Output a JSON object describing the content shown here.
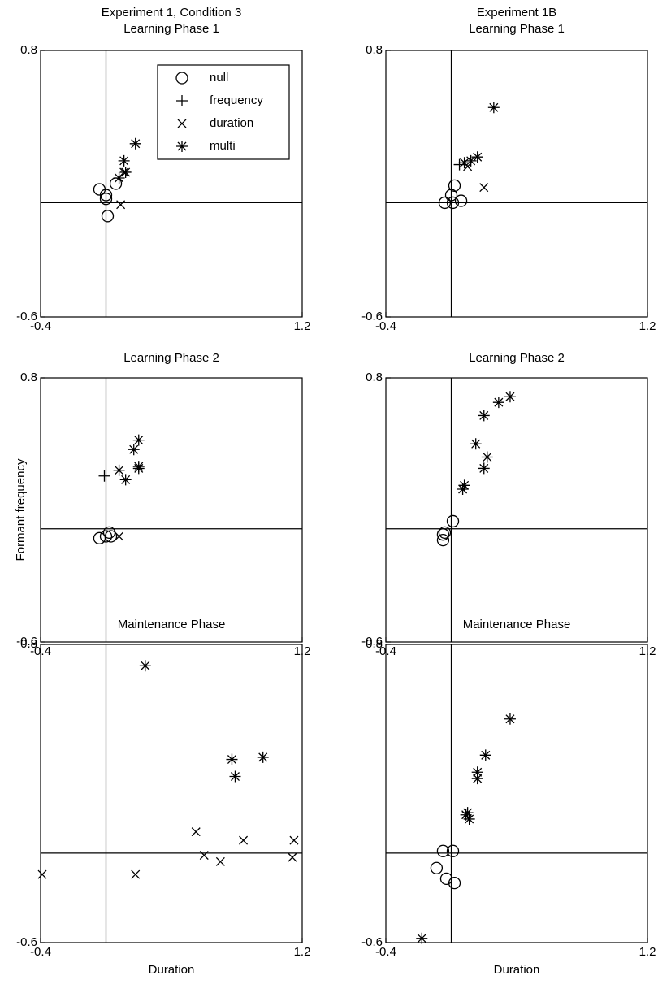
{
  "chart_data": [
    {
      "type": "scatter",
      "title": "Experiment 1, Condition 3",
      "subtitle": "Learning Phase 1",
      "xlim": [
        -0.4,
        1.2
      ],
      "ylim": [
        -0.6,
        0.8
      ],
      "xticks": [
        -0.4,
        1.2
      ],
      "yticks": [
        -0.6,
        0.8
      ],
      "crosshair": [
        0,
        0
      ],
      "legend": "top-right",
      "series": [
        {
          "name": "null",
          "marker": "circle",
          "x": [
            -0.04,
            0.0,
            0.0,
            0.06,
            0.01
          ],
          "y": [
            0.07,
            0.04,
            0.02,
            0.1,
            -0.07
          ]
        },
        {
          "name": "frequency",
          "marker": "plus",
          "x": [],
          "y": []
        },
        {
          "name": "duration",
          "marker": "x",
          "x": [
            0.09,
            0.11
          ],
          "y": [
            -0.01,
            0.16
          ]
        },
        {
          "name": "multi",
          "marker": "star",
          "x": [
            0.18,
            0.11,
            0.12,
            0.08
          ],
          "y": [
            0.31,
            0.22,
            0.16,
            0.13
          ]
        }
      ]
    },
    {
      "type": "scatter",
      "title": "Experiment 1B",
      "subtitle": "Learning Phase 1",
      "xlim": [
        -0.4,
        1.2
      ],
      "ylim": [
        -0.6,
        0.8
      ],
      "xticks": [
        -0.4,
        1.2
      ],
      "yticks": [
        -0.6,
        0.8
      ],
      "crosshair": [
        0,
        0
      ],
      "series": [
        {
          "marker": "circle",
          "x": [
            0.02,
            0.0,
            -0.04,
            0.01,
            0.06
          ],
          "y": [
            0.09,
            0.04,
            0.0,
            0.0,
            0.01
          ]
        },
        {
          "marker": "plus",
          "x": [
            0.05
          ],
          "y": [
            0.2
          ]
        },
        {
          "marker": "x",
          "x": [
            0.1,
            0.2
          ],
          "y": [
            0.19,
            0.08
          ]
        },
        {
          "marker": "star",
          "x": [
            0.26,
            0.16,
            0.12,
            0.08
          ],
          "y": [
            0.5,
            0.24,
            0.22,
            0.21
          ]
        }
      ]
    },
    {
      "type": "scatter",
      "title": "Learning Phase 2",
      "ylabel": "Formant frequency",
      "xlim": [
        -0.4,
        1.2
      ],
      "ylim": [
        -0.6,
        0.8
      ],
      "xticks": [
        -0.4,
        1.2
      ],
      "yticks": [
        -0.6,
        0.8
      ],
      "crosshair": [
        0,
        0
      ],
      "series": [
        {
          "marker": "circle",
          "x": [
            -0.04,
            0.0,
            0.02,
            0.03
          ],
          "y": [
            -0.05,
            -0.04,
            -0.02,
            -0.04
          ]
        },
        {
          "marker": "plus",
          "x": [
            -0.01
          ],
          "y": [
            0.28
          ]
        },
        {
          "marker": "x",
          "x": [
            0.08
          ],
          "y": [
            -0.04
          ]
        },
        {
          "marker": "star",
          "x": [
            0.2,
            0.17,
            0.2,
            0.2,
            0.08,
            0.12
          ],
          "y": [
            0.47,
            0.42,
            0.33,
            0.32,
            0.31,
            0.26
          ]
        }
      ]
    },
    {
      "type": "scatter",
      "title": "Learning Phase 2",
      "xlim": [
        -0.4,
        1.2
      ],
      "ylim": [
        -0.6,
        0.8
      ],
      "xticks": [
        -0.4,
        1.2
      ],
      "yticks": [
        -0.6,
        0.8
      ],
      "crosshair": [
        0,
        0
      ],
      "series": [
        {
          "marker": "circle",
          "x": [
            -0.05,
            -0.05,
            0.01,
            -0.04
          ],
          "y": [
            -0.03,
            -0.06,
            0.04,
            -0.02
          ]
        },
        {
          "marker": "star",
          "x": [
            0.36,
            0.29,
            0.2,
            0.15,
            0.22,
            0.2,
            0.08,
            0.07
          ],
          "y": [
            0.7,
            0.67,
            0.6,
            0.45,
            0.38,
            0.32,
            0.23,
            0.21
          ]
        }
      ]
    },
    {
      "type": "scatter",
      "title": "Maintenance Phase",
      "xlabel": "Duration",
      "xlim": [
        -0.4,
        1.2
      ],
      "ylim": [
        -0.6,
        0.8
      ],
      "xticks": [
        -0.4,
        1.2
      ],
      "yticks": [
        -0.6,
        0.8
      ],
      "crosshair": [
        0,
        -0.18
      ],
      "series": [
        {
          "marker": "x",
          "x": [
            -0.39,
            0.18,
            0.55,
            0.6,
            0.7,
            0.84,
            1.15,
            1.14
          ],
          "y": [
            -0.28,
            -0.28,
            -0.08,
            -0.19,
            -0.22,
            -0.12,
            -0.12,
            -0.2
          ]
        },
        {
          "marker": "star",
          "x": [
            0.24,
            0.77,
            0.79,
            0.96
          ],
          "y": [
            0.7,
            0.26,
            0.18,
            0.27
          ]
        }
      ]
    },
    {
      "type": "scatter",
      "title": "Maintenance Phase",
      "xlabel": "Duration",
      "xlim": [
        -0.4,
        1.2
      ],
      "ylim": [
        -0.6,
        0.8
      ],
      "xticks": [
        -0.4,
        1.2
      ],
      "yticks": [
        -0.6,
        0.8
      ],
      "crosshair": [
        0,
        -0.18
      ],
      "series": [
        {
          "marker": "circle",
          "x": [
            -0.05,
            0.01,
            -0.09,
            -0.03,
            0.02
          ],
          "y": [
            -0.17,
            -0.17,
            -0.25,
            -0.3,
            -0.32
          ]
        },
        {
          "marker": "star",
          "x": [
            -0.18,
            0.36,
            0.21,
            0.16,
            0.16,
            0.1,
            0.11,
            0.09
          ],
          "y": [
            -0.58,
            0.45,
            0.28,
            0.2,
            0.17,
            0.01,
            -0.02,
            0.0
          ]
        }
      ]
    }
  ]
}
